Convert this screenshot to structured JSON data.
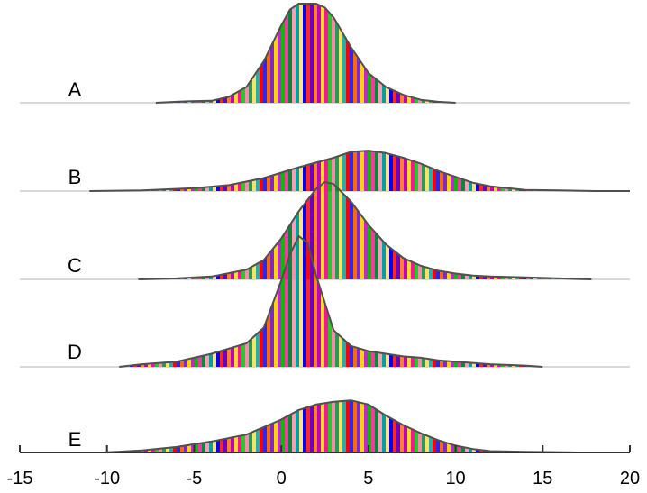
{
  "chart_data": {
    "type": "area",
    "title": "",
    "xlabel": "",
    "ylabel": "",
    "xlim": [
      -15,
      20
    ],
    "xticks": [
      -15,
      -10,
      -5,
      0,
      5,
      10,
      15,
      20
    ],
    "xtick_labels": [
      "-15",
      "-10",
      "-5",
      "0",
      "5",
      "10",
      "15",
      "20"
    ],
    "grid": false,
    "legend": "none",
    "fill_style": "rainbow vertical stripes",
    "baseline_color": "#d9d9d9",
    "outline_color": "#505050",
    "axis_color": "#303030",
    "stripe_colors": [
      "#ff0000",
      "#ff6a00",
      "#ffd400",
      "#00c000",
      "#008a3c",
      "#00a0a0",
      "#0000ff",
      "#6a00c8",
      "#c000c0",
      "#ff1493",
      "#ff88aa",
      "#ffe066"
    ],
    "series": [
      {
        "name": "A",
        "x": [
          -7.2,
          -6,
          -5.2,
          -4,
          -3,
          -2,
          -1,
          0,
          0.5,
          1,
          1.5,
          2,
          2.5,
          3,
          4,
          5,
          6,
          7,
          8,
          9,
          10
        ],
        "density": [
          0.0,
          0.01,
          0.015,
          0.02,
          0.06,
          0.16,
          0.42,
          0.78,
          0.94,
          1.0,
          1.0,
          1.0,
          0.96,
          0.86,
          0.56,
          0.3,
          0.16,
          0.08,
          0.03,
          0.01,
          0.0
        ]
      },
      {
        "name": "B",
        "x": [
          -11,
          -8,
          -5,
          -3,
          -1,
          1,
          3,
          4,
          5,
          6,
          7,
          8,
          9,
          10,
          11,
          12,
          13,
          14,
          16,
          18,
          20
        ],
        "density": [
          0.0,
          0.01,
          0.05,
          0.1,
          0.22,
          0.4,
          0.56,
          0.66,
          0.68,
          0.64,
          0.56,
          0.46,
          0.34,
          0.24,
          0.14,
          0.08,
          0.05,
          0.02,
          0.01,
          0.0,
          0.0
        ]
      },
      {
        "name": "C",
        "x": [
          -8.2,
          -6,
          -4,
          -2,
          -1,
          0,
          1,
          2,
          2.5,
          3,
          4,
          5,
          6,
          7,
          8,
          9,
          10,
          11,
          12,
          14,
          16,
          17.8
        ],
        "density": [
          0.0,
          0.01,
          0.03,
          0.1,
          0.2,
          0.42,
          0.7,
          0.93,
          1.0,
          0.98,
          0.8,
          0.56,
          0.36,
          0.22,
          0.14,
          0.09,
          0.06,
          0.04,
          0.03,
          0.02,
          0.01,
          0.0
        ]
      },
      {
        "name": "D",
        "x": [
          -9.3,
          -8,
          -6,
          -4,
          -2,
          -1,
          0,
          0.5,
          1,
          1.5,
          2,
          3,
          4,
          5,
          6,
          7,
          8,
          9,
          10,
          12,
          14,
          15
        ],
        "density": [
          0.0,
          0.02,
          0.04,
          0.1,
          0.18,
          0.3,
          0.66,
          0.86,
          1.0,
          0.95,
          0.7,
          0.28,
          0.16,
          0.12,
          0.1,
          0.08,
          0.07,
          0.05,
          0.04,
          0.02,
          0.01,
          0.0
        ]
      },
      {
        "name": "E",
        "x": [
          -10.2,
          -8,
          -6,
          -4,
          -2,
          0,
          1,
          2,
          3,
          4,
          5,
          6,
          7,
          8,
          9,
          10,
          11,
          12,
          14,
          17
        ],
        "density": [
          0.0,
          0.03,
          0.08,
          0.16,
          0.26,
          0.48,
          0.62,
          0.7,
          0.74,
          0.76,
          0.7,
          0.54,
          0.4,
          0.28,
          0.18,
          0.1,
          0.05,
          0.02,
          0.01,
          0.0
        ]
      }
    ]
  }
}
